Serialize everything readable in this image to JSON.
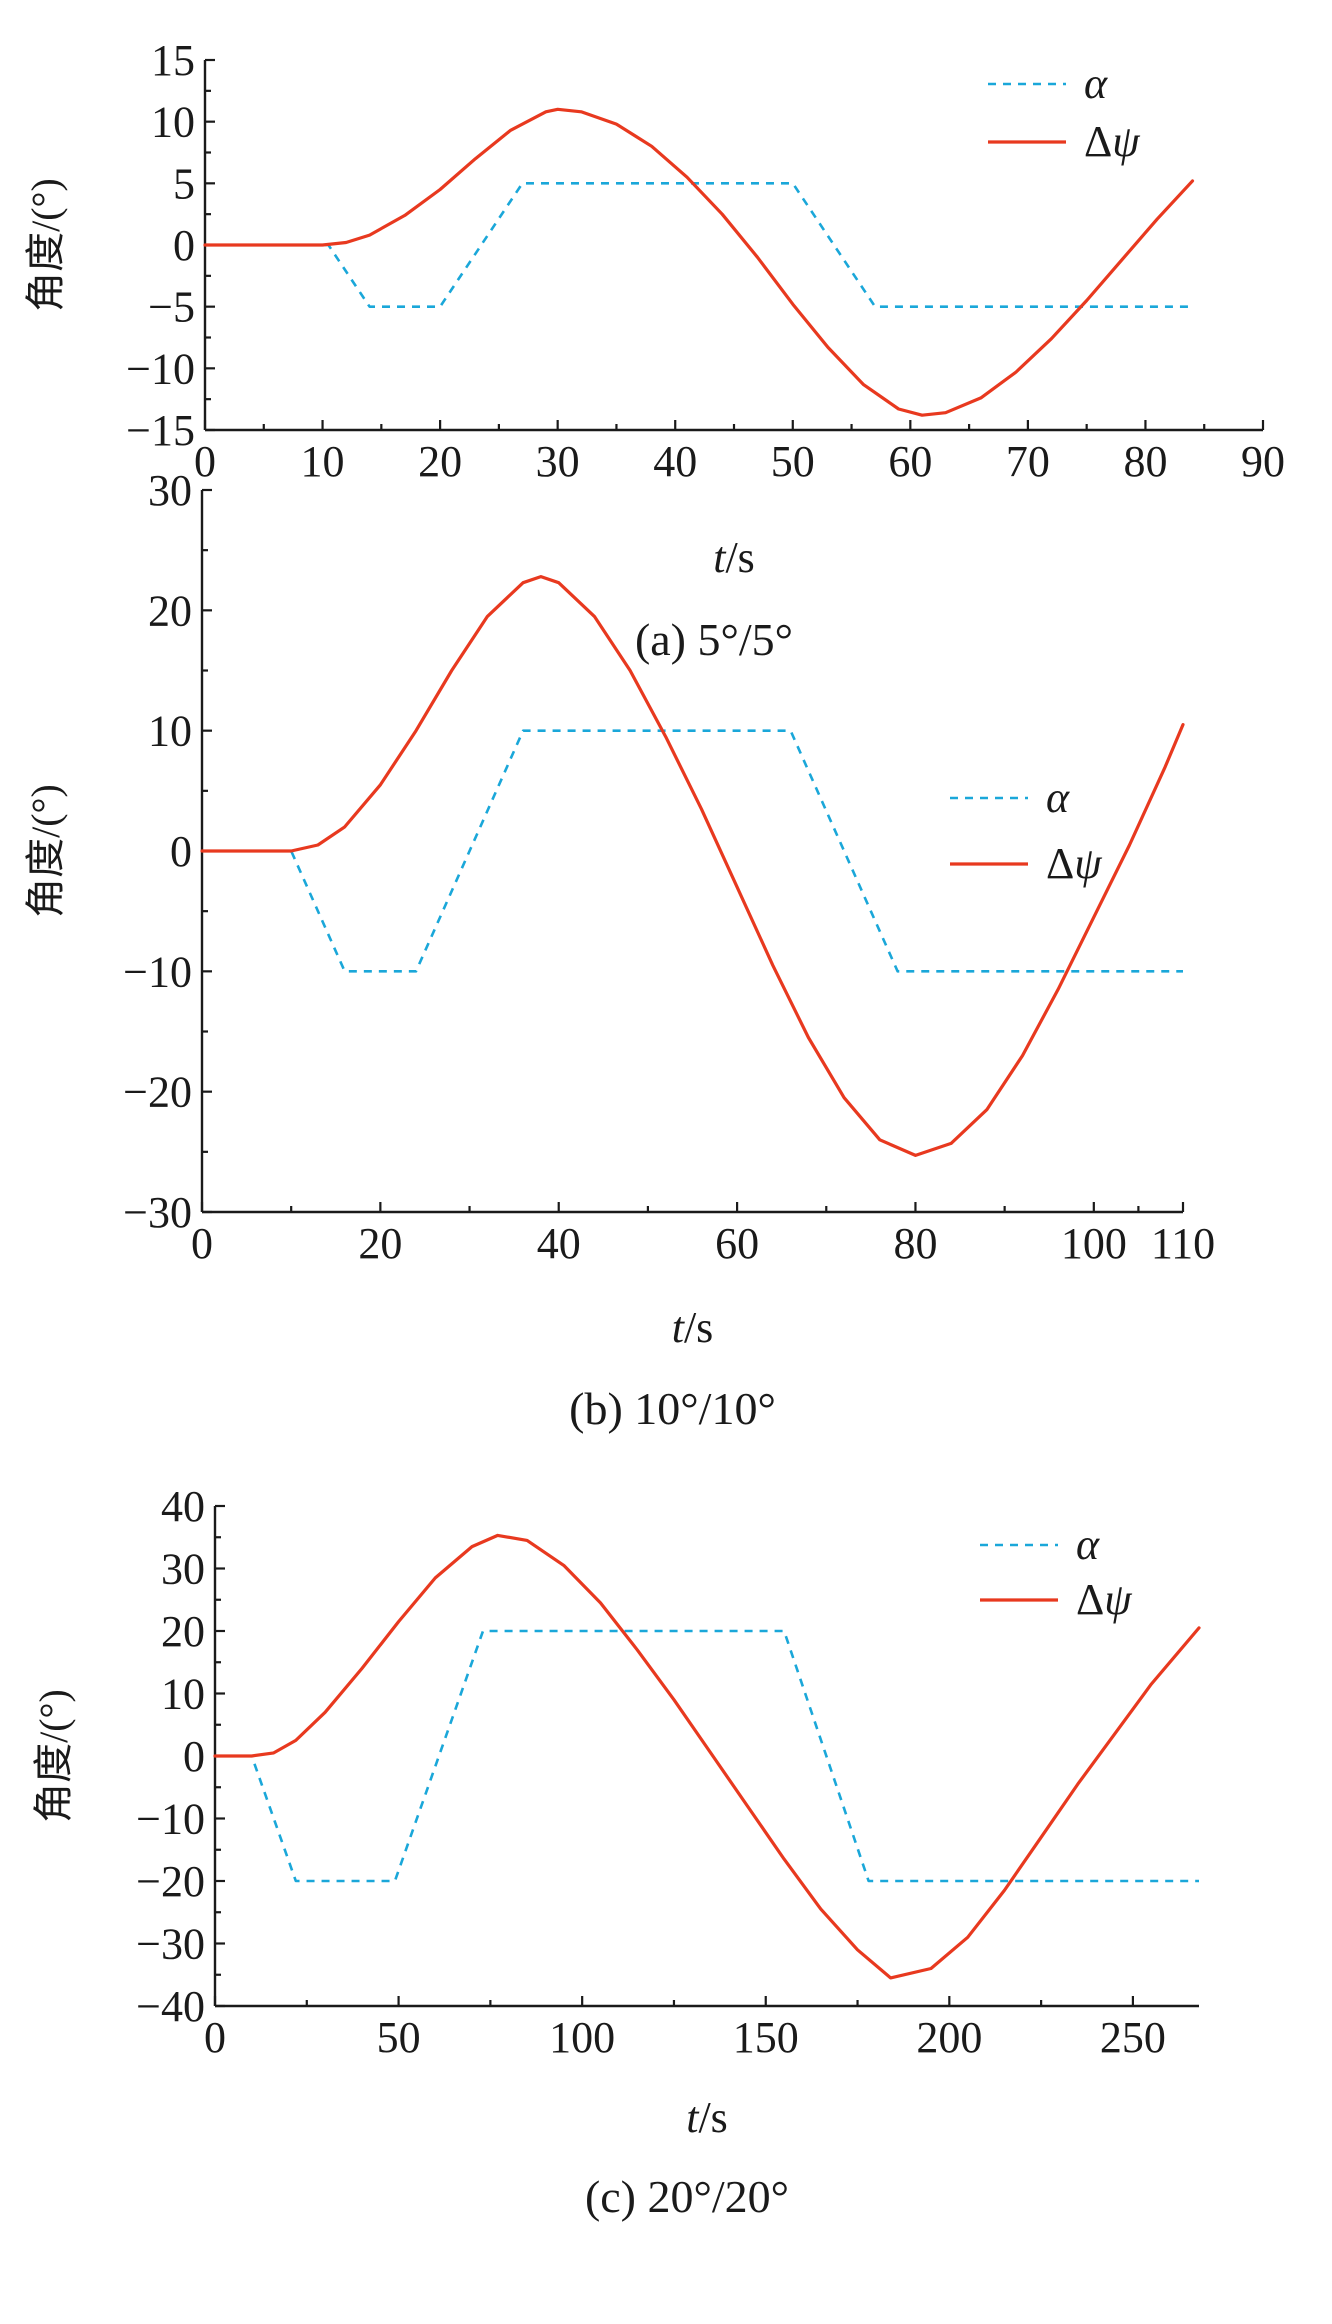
{
  "chart_data": [
    {
      "type": "line",
      "caption": "(a) 5°/5°",
      "xlabel_italic": "t",
      "xlabel_rest": "/s",
      "ylabel": "角度/(°)",
      "xlim": [
        0,
        90
      ],
      "ylim": [
        -15,
        15
      ],
      "xticks": [
        0,
        10,
        20,
        30,
        40,
        50,
        60,
        70,
        80,
        90
      ],
      "xtick_labels": [
        "0",
        "10",
        "20",
        "30",
        "40",
        "50",
        "60",
        "70",
        "80",
        "90"
      ],
      "yticks": [
        15,
        10,
        5,
        0,
        -5,
        -10,
        -15
      ],
      "ytick_labels": [
        "15",
        "10",
        "5",
        "0",
        "−5",
        "−10",
        "−15"
      ],
      "legend_position": "top-right",
      "grid": false,
      "series": [
        {
          "name": "α",
          "style": "dashed",
          "color": "#1aa7d9",
          "x": [
            0,
            10.5,
            14,
            20,
            27,
            50,
            57,
            84
          ],
          "y": [
            0,
            0,
            -5,
            -5,
            5,
            5,
            -5,
            -5
          ]
        },
        {
          "name": "Δψ",
          "style": "solid",
          "color": "#e8391f",
          "x": [
            0,
            10,
            12,
            14,
            17,
            20,
            23,
            26,
            29,
            30,
            32,
            35,
            38,
            41,
            44,
            47,
            50,
            53,
            56,
            59,
            61,
            63,
            66,
            69,
            72,
            75,
            78,
            81,
            84
          ],
          "y": [
            0,
            0,
            0.2,
            0.8,
            2.4,
            4.5,
            7,
            9.3,
            10.8,
            11,
            10.8,
            9.8,
            8,
            5.5,
            2.5,
            -1,
            -4.8,
            -8.3,
            -11.3,
            -13.3,
            -13.8,
            -13.6,
            -12.4,
            -10.3,
            -7.6,
            -4.5,
            -1.2,
            2.1,
            5.2
          ]
        }
      ]
    },
    {
      "type": "line",
      "caption": "(b) 10°/10°",
      "xlabel_italic": "t",
      "xlabel_rest": "/s",
      "ylabel": "角度/(°)",
      "xlim": [
        0,
        110
      ],
      "ylim": [
        -30,
        30
      ],
      "xticks": [
        0,
        20,
        40,
        60,
        80,
        100,
        110
      ],
      "xtick_labels": [
        "0",
        "20",
        "40",
        "60",
        "80",
        "100",
        "110"
      ],
      "yticks": [
        30,
        20,
        10,
        0,
        -10,
        -20,
        -30
      ],
      "ytick_labels": [
        "30",
        "20",
        "10",
        "0",
        "−10",
        "−20",
        "−30"
      ],
      "legend_position": "top-right",
      "grid": false,
      "series": [
        {
          "name": "α",
          "style": "dashed",
          "color": "#1aa7d9",
          "x": [
            0,
            10,
            16,
            24,
            36,
            66,
            78,
            110
          ],
          "y": [
            0,
            0,
            -10,
            -10,
            10,
            10,
            -10,
            -10
          ]
        },
        {
          "name": "Δψ",
          "style": "solid",
          "color": "#e8391f",
          "x": [
            0,
            10,
            13,
            16,
            20,
            24,
            28,
            32,
            36,
            38,
            40,
            44,
            48,
            52,
            56,
            60,
            64,
            68,
            72,
            76,
            80,
            84,
            88,
            92,
            96,
            100,
            104,
            108,
            110
          ],
          "y": [
            0,
            0,
            0.5,
            2,
            5.5,
            10,
            15,
            19.5,
            22.3,
            22.8,
            22.3,
            19.5,
            15,
            9.5,
            3.5,
            -3,
            -9.5,
            -15.5,
            -20.5,
            -24,
            -25.3,
            -24.3,
            -21.5,
            -17,
            -11.5,
            -5.5,
            0.5,
            7,
            10.5
          ]
        }
      ]
    },
    {
      "type": "line",
      "caption": "(c) 20°/20°",
      "xlabel_italic": "t",
      "xlabel_rest": "/s",
      "ylabel": "角度/(°)",
      "xlim": [
        0,
        268
      ],
      "ylim": [
        -40,
        40
      ],
      "xticks": [
        0,
        50,
        100,
        150,
        200,
        250
      ],
      "xtick_labels": [
        "0",
        "50",
        "100",
        "150",
        "200",
        "250"
      ],
      "yticks": [
        40,
        30,
        20,
        10,
        0,
        -10,
        -20,
        -30,
        -40
      ],
      "ytick_labels": [
        "40",
        "30",
        "20",
        "10",
        "0",
        "−10",
        "−20",
        "−30",
        "−40"
      ],
      "legend_position": "top-right",
      "grid": false,
      "series": [
        {
          "name": "α",
          "style": "dashed",
          "color": "#1aa7d9",
          "x": [
            0,
            10,
            22,
            49,
            73,
            155,
            178,
            268
          ],
          "y": [
            0,
            0,
            -20,
            -20,
            20,
            20,
            -20,
            -20
          ]
        },
        {
          "name": "Δψ",
          "style": "solid",
          "color": "#e8391f",
          "x": [
            0,
            10,
            16,
            22,
            30,
            40,
            50,
            60,
            70,
            77,
            85,
            95,
            105,
            115,
            125,
            135,
            145,
            155,
            165,
            175,
            184,
            195,
            205,
            215,
            225,
            235,
            245,
            255,
            268
          ],
          "y": [
            0,
            0,
            0.5,
            2.5,
            7,
            14,
            21.5,
            28.5,
            33.5,
            35.3,
            34.5,
            30.5,
            24.5,
            17,
            9,
            0.5,
            -8,
            -16.5,
            -24.5,
            -31,
            -35.5,
            -34,
            -29,
            -21.5,
            -13,
            -4.5,
            3.5,
            11.5,
            20.5
          ]
        }
      ]
    }
  ]
}
